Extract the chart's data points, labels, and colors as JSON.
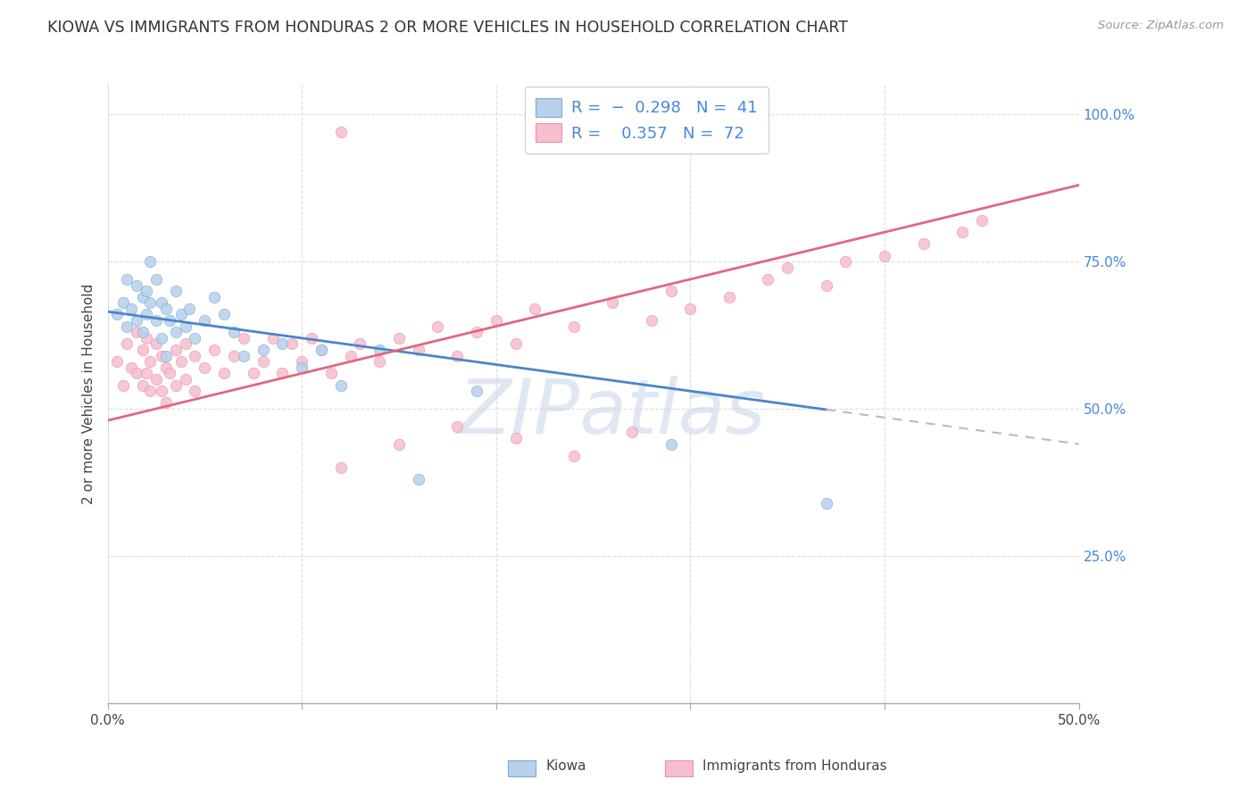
{
  "title": "KIOWA VS IMMIGRANTS FROM HONDURAS 2 OR MORE VEHICLES IN HOUSEHOLD CORRELATION CHART",
  "source": "Source: ZipAtlas.com",
  "ylabel": "2 or more Vehicles in Household",
  "x_min": 0.0,
  "x_max": 0.5,
  "y_min": 0.0,
  "y_max": 1.05,
  "kiowa_R": "-0.298",
  "kiowa_N": "41",
  "honduras_R": "0.357",
  "honduras_N": "72",
  "kiowa_fill_color": "#b8d0eb",
  "kiowa_edge_color": "#7aaed6",
  "honduras_fill_color": "#f5bfce",
  "honduras_edge_color": "#f090a8",
  "kiowa_line_color": "#4a86c8",
  "honduras_line_color": "#e06880",
  "dashed_line_color": "#bbbbbb",
  "grid_color": "#dddddd",
  "background": "#ffffff",
  "watermark": "ZIPatlas",
  "watermark_color": "#ccd8ec",
  "right_axis_color": "#4488dd",
  "title_color": "#333333",
  "label_color": "#444444",
  "source_color": "#999999",
  "legend_text_color": "#333333",
  "legend_value_color": "#4488dd",
  "kiowa_scatter_x": [
    0.005,
    0.008,
    0.01,
    0.01,
    0.012,
    0.015,
    0.015,
    0.018,
    0.018,
    0.02,
    0.02,
    0.022,
    0.022,
    0.025,
    0.025,
    0.028,
    0.028,
    0.03,
    0.03,
    0.032,
    0.035,
    0.035,
    0.038,
    0.04,
    0.042,
    0.045,
    0.05,
    0.055,
    0.06,
    0.065,
    0.07,
    0.08,
    0.09,
    0.1,
    0.11,
    0.12,
    0.14,
    0.16,
    0.19,
    0.29,
    0.37
  ],
  "kiowa_scatter_y": [
    0.66,
    0.68,
    0.72,
    0.64,
    0.67,
    0.71,
    0.65,
    0.69,
    0.63,
    0.7,
    0.66,
    0.75,
    0.68,
    0.72,
    0.65,
    0.68,
    0.62,
    0.67,
    0.59,
    0.65,
    0.7,
    0.63,
    0.66,
    0.64,
    0.67,
    0.62,
    0.65,
    0.69,
    0.66,
    0.63,
    0.59,
    0.6,
    0.61,
    0.57,
    0.6,
    0.54,
    0.6,
    0.38,
    0.53,
    0.44,
    0.34
  ],
  "honduras_scatter_x": [
    0.005,
    0.008,
    0.01,
    0.012,
    0.015,
    0.015,
    0.018,
    0.018,
    0.02,
    0.02,
    0.022,
    0.022,
    0.025,
    0.025,
    0.028,
    0.028,
    0.03,
    0.03,
    0.032,
    0.035,
    0.035,
    0.038,
    0.04,
    0.04,
    0.045,
    0.045,
    0.05,
    0.055,
    0.06,
    0.065,
    0.07,
    0.075,
    0.08,
    0.085,
    0.09,
    0.095,
    0.1,
    0.105,
    0.11,
    0.115,
    0.12,
    0.125,
    0.13,
    0.14,
    0.15,
    0.16,
    0.17,
    0.18,
    0.19,
    0.2,
    0.21,
    0.22,
    0.24,
    0.26,
    0.28,
    0.29,
    0.3,
    0.32,
    0.34,
    0.35,
    0.37,
    0.38,
    0.4,
    0.42,
    0.44,
    0.45,
    0.12,
    0.15,
    0.18,
    0.21,
    0.24,
    0.27
  ],
  "honduras_scatter_y": [
    0.58,
    0.54,
    0.61,
    0.57,
    0.63,
    0.56,
    0.6,
    0.54,
    0.62,
    0.56,
    0.58,
    0.53,
    0.61,
    0.55,
    0.59,
    0.53,
    0.57,
    0.51,
    0.56,
    0.6,
    0.54,
    0.58,
    0.61,
    0.55,
    0.59,
    0.53,
    0.57,
    0.6,
    0.56,
    0.59,
    0.62,
    0.56,
    0.58,
    0.62,
    0.56,
    0.61,
    0.58,
    0.62,
    0.6,
    0.56,
    0.97,
    0.59,
    0.61,
    0.58,
    0.62,
    0.6,
    0.64,
    0.59,
    0.63,
    0.65,
    0.61,
    0.67,
    0.64,
    0.68,
    0.65,
    0.7,
    0.67,
    0.69,
    0.72,
    0.74,
    0.71,
    0.75,
    0.76,
    0.78,
    0.8,
    0.82,
    0.4,
    0.44,
    0.47,
    0.45,
    0.42,
    0.46
  ]
}
